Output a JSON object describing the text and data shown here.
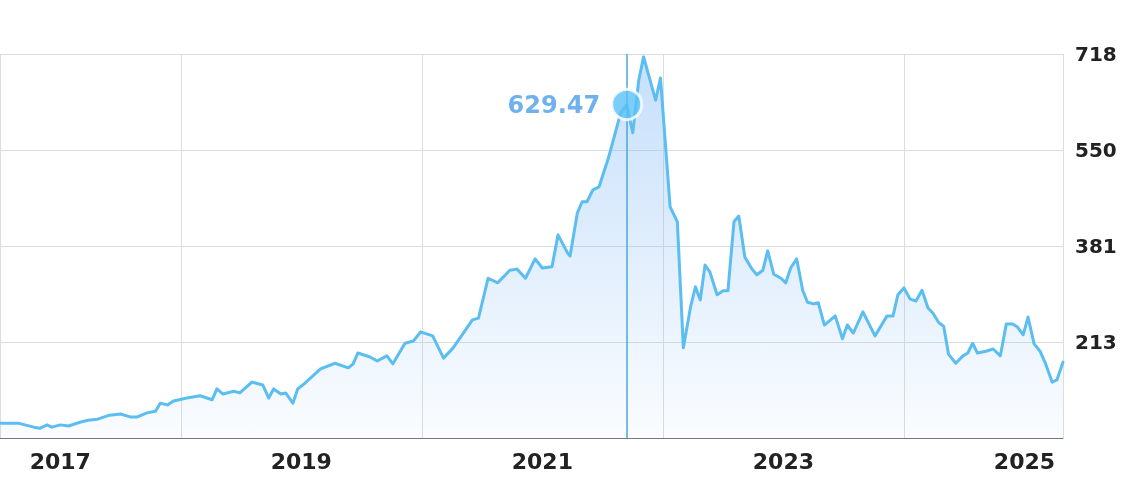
{
  "chart_data": {
    "type": "area",
    "color": "#5bbdf0",
    "x": [
      2016.5,
      2016.65,
      2016.78,
      2016.83,
      2016.89,
      2016.93,
      2017.0,
      2017.07,
      2017.17,
      2017.23,
      2017.31,
      2017.41,
      2017.5,
      2017.58,
      2017.64,
      2017.72,
      2017.79,
      2017.83,
      2017.89,
      2017.94,
      2018.05,
      2018.16,
      2018.26,
      2018.3,
      2018.35,
      2018.44,
      2018.49,
      2018.59,
      2018.68,
      2018.73,
      2018.77,
      2018.83,
      2018.87,
      2018.93,
      2018.97,
      2019.03,
      2019.16,
      2019.28,
      2019.39,
      2019.43,
      2019.47,
      2019.57,
      2019.63,
      2019.71,
      2019.76,
      2019.86,
      2019.93,
      2019.99,
      2020.09,
      2020.18,
      2020.26,
      2020.42,
      2020.47,
      2020.55,
      2020.63,
      2020.73,
      2020.79,
      2020.86,
      2020.94,
      2021.0,
      2021.08,
      2021.13,
      2021.21,
      2021.23,
      2021.29,
      2021.33,
      2021.37,
      2021.42,
      2021.47,
      2021.55,
      2021.65,
      2021.7,
      2021.75,
      2021.8,
      2021.84,
      2021.94,
      2021.98,
      2022.06,
      2022.12,
      2022.17,
      2022.23,
      2022.27,
      2022.31,
      2022.35,
      2022.39,
      2022.45,
      2022.5,
      2022.54,
      2022.59,
      2022.63,
      2022.68,
      2022.74,
      2022.78,
      2022.83,
      2022.87,
      2022.92,
      2022.98,
      2023.02,
      2023.06,
      2023.11,
      2023.16,
      2023.2,
      2023.25,
      2023.29,
      2023.34,
      2023.43,
      2023.49,
      2023.53,
      2023.58,
      2023.66,
      2023.76,
      2023.86,
      2023.91,
      2023.95,
      2024.0,
      2024.05,
      2024.1,
      2024.15,
      2024.2,
      2024.24,
      2024.29,
      2024.33,
      2024.37,
      2024.43,
      2024.49,
      2024.53,
      2024.57,
      2024.61,
      2024.68,
      2024.74,
      2024.8,
      2024.85,
      2024.9,
      2024.94,
      2024.99,
      2025.03,
      2025.08,
      2025.13,
      2025.17,
      2025.23,
      2025.27,
      2025.32
    ],
    "values": [
      71,
      71,
      64,
      62,
      68,
      64,
      68,
      66,
      73,
      76,
      78,
      85,
      87,
      82,
      82,
      89,
      92,
      106,
      103,
      110,
      115,
      119,
      112,
      131,
      122,
      127,
      124,
      143,
      138,
      115,
      131,
      122,
      124,
      106,
      131,
      141,
      166,
      176,
      168,
      175,
      194,
      187,
      180,
      189,
      175,
      211,
      215,
      231,
      224,
      185,
      203,
      252,
      255,
      325,
      317,
      339,
      341,
      325,
      359,
      343,
      345,
      401,
      369,
      364,
      439,
      459,
      459,
      480,
      485,
      537,
      615,
      629.47,
      580,
      672,
      713,
      637,
      676,
      450,
      424,
      203,
      275,
      310,
      287,
      348,
      336,
      296,
      303,
      303,
      424,
      434,
      362,
      341,
      331,
      339,
      373,
      332,
      325,
      317,
      343,
      359,
      304,
      283,
      280,
      282,
      243,
      259,
      219,
      243,
      229,
      266,
      224,
      259,
      259,
      296,
      308,
      289,
      285,
      304,
      273,
      264,
      247,
      241,
      192,
      176,
      189,
      194,
      211,
      194,
      197,
      201,
      189,
      245,
      245,
      240,
      226,
      257,
      210,
      197,
      178,
      143,
      147,
      178
    ],
    "xlim": [
      2016.5,
      2025.32
    ],
    "xticks": [
      2017,
      2019,
      2021,
      2023,
      2025
    ],
    "ylim": [
      45,
      718
    ],
    "yticks": [
      213,
      381,
      550,
      718
    ],
    "grid": true,
    "marker": "none",
    "line_style": "solid",
    "ref_lines": [
      {
        "axis": "x",
        "value": 2021.7,
        "color": "#4aa8d8"
      }
    ],
    "series": [
      {
        "type": "scatter",
        "marker": "circle",
        "color": "#5bc0f5",
        "x": [
          2021.7
        ],
        "values": [
          629.47
        ],
        "data_labels": true
      }
    ]
  }
}
